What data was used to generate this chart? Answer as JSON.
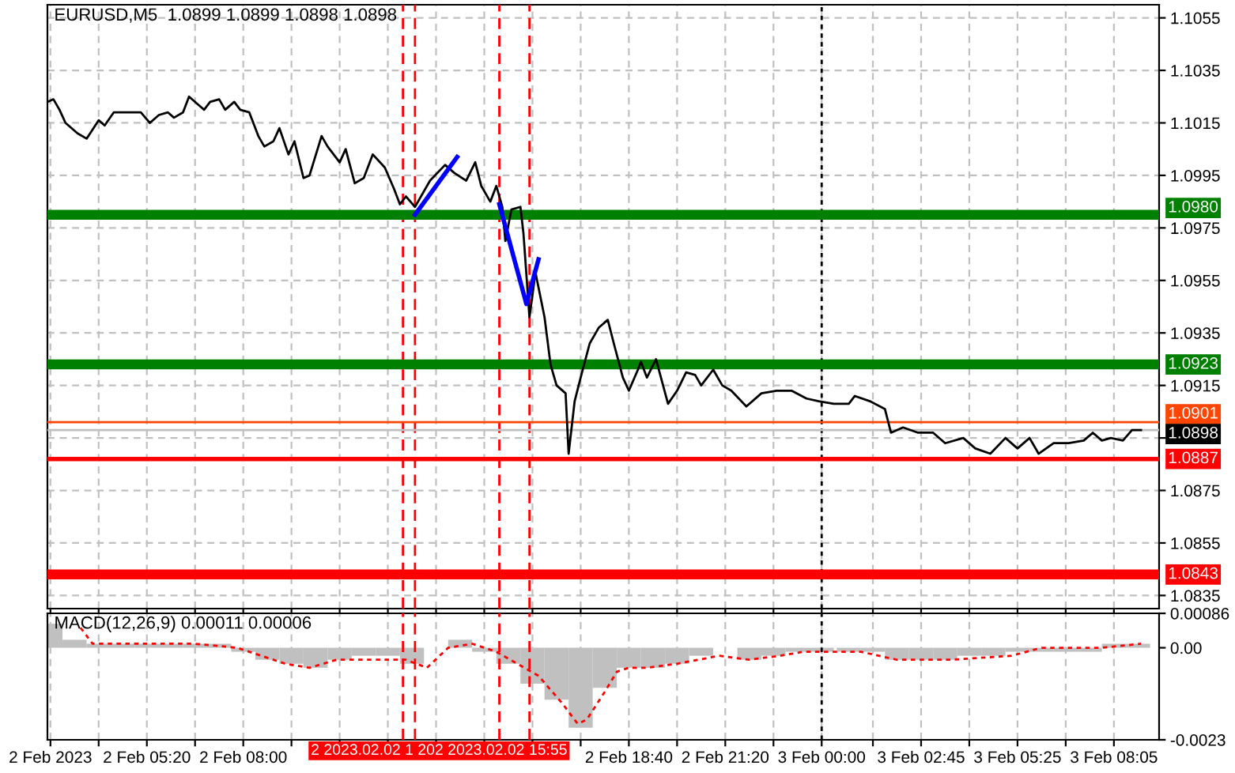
{
  "chart_data": [
    {
      "type": "line",
      "title": "EURUSD,M5  1.0899 1.0899 1.0898 1.0898",
      "xlim": [
        "2023-02-02T02:35",
        "2023-02-03T09:20"
      ],
      "ylim": [
        1.083,
        1.106
      ],
      "xticks": [
        {
          "value": "2023-02-02T02:40",
          "label": null
        },
        {
          "value": "2023-02-02T04:00",
          "label": null
        },
        {
          "value": "2023-02-02T05:20",
          "label": null
        },
        {
          "value": "2023-02-02T06:40",
          "label": null
        },
        {
          "value": "2023-02-02T08:00",
          "label": null
        },
        {
          "value": "2023-02-02T09:20",
          "label": null
        },
        {
          "value": "2023-02-02T10:40",
          "label": null
        },
        {
          "value": "2023-02-02T12:00",
          "label": null
        },
        {
          "value": "2023-02-02T13:20",
          "label": null
        },
        {
          "value": "2023-02-02T14:40",
          "label": null
        },
        {
          "value": "2023-02-02T16:00",
          "label": null
        },
        {
          "value": "2023-02-02T17:20",
          "label": null
        },
        {
          "value": "2023-02-02T18:40",
          "label": null
        },
        {
          "value": "2023-02-02T20:00",
          "label": null
        },
        {
          "value": "2023-02-02T21:20",
          "label": null
        },
        {
          "value": "2023-02-02T22:40",
          "label": null
        },
        {
          "value": "2023-02-03T00:00",
          "label": null
        },
        {
          "value": "2023-02-03T01:25",
          "label": null
        },
        {
          "value": "2023-02-03T02:45",
          "label": null
        },
        {
          "value": "2023-02-03T04:05",
          "label": null
        },
        {
          "value": "2023-02-03T05:25",
          "label": null
        },
        {
          "value": "2023-02-03T06:45",
          "label": null
        },
        {
          "value": "2023-02-03T08:05",
          "label": null
        }
      ],
      "yticks": [
        1.1055,
        1.1035,
        1.1015,
        1.0995,
        1.0975,
        1.0955,
        1.0935,
        1.0915,
        {
          "value": 1.0895,
          "label": null
        },
        1.0875,
        1.0855,
        1.0835
      ],
      "tick_labels": "y",
      "grid": true,
      "marker": "none",
      "series": [
        {
          "color": "#000000",
          "x": [
            "2023-02-02T02:35",
            "2023-02-02T02:45",
            "2023-02-02T02:55",
            "2023-02-02T03:05",
            "2023-02-02T03:25",
            "2023-02-02T03:40",
            "2023-02-02T04:00",
            "2023-02-02T04:10",
            "2023-02-02T04:25",
            "2023-02-02T04:50",
            "2023-02-02T05:10",
            "2023-02-02T05:25",
            "2023-02-02T05:40",
            "2023-02-02T05:55",
            "2023-02-02T06:05",
            "2023-02-02T06:20",
            "2023-02-02T06:30",
            "2023-02-02T06:45",
            "2023-02-02T06:55",
            "2023-02-02T07:05",
            "2023-02-02T07:20",
            "2023-02-02T07:30",
            "2023-02-02T07:45",
            "2023-02-02T07:55",
            "2023-02-02T08:10",
            "2023-02-02T08:25",
            "2023-02-02T08:35",
            "2023-02-02T08:50",
            "2023-02-02T09:00",
            "2023-02-02T09:15",
            "2023-02-02T09:25",
            "2023-02-02T09:40",
            "2023-02-02T09:50",
            "2023-02-02T10:10",
            "2023-02-02T10:20",
            "2023-02-02T10:40",
            "2023-02-02T10:50",
            "2023-02-02T11:05",
            "2023-02-02T11:20",
            "2023-02-02T11:35",
            "2023-02-02T11:55",
            "2023-02-02T12:10",
            "2023-02-02T12:20",
            "2023-02-02T12:30",
            "2023-02-02T12:45",
            "2023-02-02T13:10",
            "2023-02-02T13:35",
            "2023-02-02T13:50",
            "2023-02-02T14:10",
            "2023-02-02T14:25",
            "2023-02-02T14:35",
            "2023-02-02T14:50",
            "2023-02-02T15:00",
            "2023-02-02T15:10",
            "2023-02-02T15:15",
            "2023-02-02T15:25",
            "2023-02-02T15:40",
            "2023-02-02T15:45",
            "2023-02-02T15:55",
            "2023-02-02T16:05",
            "2023-02-02T16:20",
            "2023-02-02T16:30",
            "2023-02-02T16:40",
            "2023-02-02T16:55",
            "2023-02-02T17:00",
            "2023-02-02T17:10",
            "2023-02-02T17:20",
            "2023-02-02T17:35",
            "2023-02-02T17:50",
            "2023-02-02T18:05",
            "2023-02-02T18:15",
            "2023-02-02T18:30",
            "2023-02-02T18:40",
            "2023-02-02T18:55",
            "2023-02-02T19:00",
            "2023-02-02T19:10",
            "2023-02-02T19:25",
            "2023-02-02T19:45",
            "2023-02-02T20:00",
            "2023-02-02T20:15",
            "2023-02-02T20:30",
            "2023-02-02T20:40",
            "2023-02-02T21:00",
            "2023-02-02T21:15",
            "2023-02-02T21:30",
            "2023-02-02T21:55",
            "2023-02-02T22:20",
            "2023-02-02T22:45",
            "2023-02-02T23:10",
            "2023-02-02T23:35",
            "2023-02-02T23:55",
            "2023-02-03T00:20",
            "2023-02-03T00:45",
            "2023-02-03T00:55",
            "2023-02-03T01:20",
            "2023-02-03T01:45",
            "2023-02-03T01:55",
            "2023-02-03T02:15",
            "2023-02-03T02:40",
            "2023-02-03T03:05",
            "2023-02-03T03:25",
            "2023-02-03T03:55",
            "2023-02-03T04:15",
            "2023-02-03T04:40",
            "2023-02-03T05:05",
            "2023-02-03T05:25",
            "2023-02-03T05:45",
            "2023-02-03T06:00",
            "2023-02-03T06:25",
            "2023-02-03T06:50",
            "2023-02-03T07:15",
            "2023-02-03T07:30",
            "2023-02-03T07:45",
            "2023-02-03T08:00",
            "2023-02-03T08:20",
            "2023-02-03T08:35",
            "2023-02-03T08:50"
          ],
          "values": [
            1.1023,
            1.1024,
            1.102,
            1.1015,
            1.1011,
            1.1009,
            1.1016,
            1.1014,
            1.1019,
            1.1019,
            1.1019,
            1.1015,
            1.1018,
            1.1019,
            1.1017,
            1.1019,
            1.1025,
            1.1022,
            1.102,
            1.1023,
            1.1024,
            1.102,
            1.1023,
            1.102,
            1.1019,
            1.101,
            1.1006,
            1.1008,
            1.1013,
            1.1003,
            1.1008,
            1.0994,
            1.0995,
            1.101,
            1.1006,
            1.1,
            1.1005,
            1.0992,
            1.0994,
            1.1003,
            1.0998,
            1.099,
            1.0984,
            1.0987,
            1.0983,
            1.0993,
            1.0999,
            1.0996,
            1.0993,
            1.1,
            1.0991,
            1.0985,
            1.0991,
            1.0983,
            1.097,
            1.0982,
            1.0983,
            1.0973,
            1.0941,
            1.0958,
            1.0941,
            1.0923,
            1.0915,
            1.0912,
            1.0889,
            1.0909,
            1.0918,
            1.0931,
            1.0937,
            1.094,
            1.0931,
            1.0918,
            1.0913,
            1.0921,
            1.0924,
            1.0918,
            1.0925,
            1.0908,
            1.0913,
            1.092,
            1.0919,
            1.0915,
            1.0921,
            1.0915,
            1.0913,
            1.0907,
            1.0912,
            1.0913,
            1.0913,
            1.091,
            1.0909,
            1.0908,
            1.0908,
            1.0911,
            1.0909,
            1.0906,
            1.0897,
            1.0899,
            1.0897,
            1.0897,
            1.0893,
            1.0895,
            1.0891,
            1.0889,
            1.0895,
            1.0891,
            1.0895,
            1.0889,
            1.0893,
            1.0893,
            1.0894,
            1.0897,
            1.0894,
            1.0895,
            1.0894,
            1.0898,
            1.0898
          ]
        },
        {
          "color": "#0000ff",
          "x": [
            "2023-02-02T12:45",
            "2023-02-02T13:55"
          ],
          "values": [
            1.098,
            1.1002
          ]
        },
        {
          "color": "#0000ff",
          "x": [
            "2023-02-02T15:05",
            "2023-02-02T15:50",
            "2023-02-02T16:10"
          ],
          "values": [
            1.0984,
            1.0946,
            1.0963
          ]
        }
      ],
      "ref_lines": [
        {
          "axis": "x",
          "value": "2023-02-02T12:25",
          "color": "#ff0000",
          "line_style": "dashed"
        },
        {
          "axis": "x",
          "value": "2023-02-02T12:45",
          "color": "#ff0000",
          "line_style": "dashed"
        },
        {
          "axis": "x",
          "value": "2023-02-02T15:05",
          "color": "#ff0000",
          "line_style": "dashed"
        },
        {
          "axis": "x",
          "value": "2023-02-02T15:55",
          "color": "#ff0000",
          "line_style": "dashed"
        },
        {
          "axis": "x",
          "value": "2023-02-03T00:00",
          "color": "#000000",
          "line_style": "dotted"
        },
        {
          "axis": "y",
          "value": 1.098,
          "label": "1.0980",
          "color": "#008000",
          "line_style": "solid"
        },
        {
          "axis": "y",
          "value": 1.0923,
          "label": "1.0923",
          "color": "#008000",
          "line_style": "solid"
        },
        {
          "axis": "y",
          "value": 1.0901,
          "label": "1.0901",
          "color": "#ff4500",
          "line_style": "solid"
        },
        {
          "axis": "y",
          "value": 1.0898,
          "label": "1.0898",
          "color": "#c0c0c0",
          "line_style": "solid"
        },
        {
          "axis": "y",
          "value": 1.0887,
          "label": "1.0887",
          "color": "#ff0000",
          "line_style": "solid"
        },
        {
          "axis": "y",
          "value": 1.0843,
          "label": "1.0843",
          "color": "#ff0000",
          "line_style": "solid"
        }
      ]
    },
    {
      "type": "bar",
      "title": "MACD(12,26,9) 0.00011 0.00006",
      "xlim": [
        "2023-02-02T02:35",
        "2023-02-03T09:20"
      ],
      "ylim": [
        -0.0023,
        0.00086
      ],
      "xticks": [
        {
          "value": "2023-02-02T02:40",
          "label": "2 Feb 2023"
        },
        {
          "value": "2023-02-02T04:00",
          "label": null
        },
        {
          "value": "2023-02-02T05:20",
          "label": "2 Feb 05:20"
        },
        {
          "value": "2023-02-02T06:40",
          "label": null
        },
        {
          "value": "2023-02-02T08:00",
          "label": "2 Feb 08:00"
        },
        {
          "value": "2023-02-02T09:20",
          "label": null
        },
        {
          "value": "2023-02-02T10:40",
          "label": null
        },
        {
          "value": "2023-02-02T12:00",
          "label": null
        },
        {
          "value": "2023-02-02T13:20",
          "label": null
        },
        {
          "value": "2023-02-02T14:40",
          "label": null
        },
        {
          "value": "2023-02-02T16:00",
          "label": null
        },
        {
          "value": "2023-02-02T17:20",
          "label": null
        },
        {
          "value": "2023-02-02T18:40",
          "label": "2 Feb 18:40"
        },
        {
          "value": "2023-02-02T20:00",
          "label": null
        },
        {
          "value": "2023-02-02T21:20",
          "label": "2 Feb 21:20"
        },
        {
          "value": "2023-02-02T22:40",
          "label": null
        },
        {
          "value": "2023-02-03T00:00",
          "label": "3 Feb 00:00"
        },
        {
          "value": "2023-02-03T01:25",
          "label": null
        },
        {
          "value": "2023-02-03T02:45",
          "label": "3 Feb 02:45"
        },
        {
          "value": "2023-02-03T04:05",
          "label": null
        },
        {
          "value": "2023-02-03T05:25",
          "label": "3 Feb 05:25"
        },
        {
          "value": "2023-02-03T06:45",
          "label": null
        },
        {
          "value": "2023-02-03T08:05",
          "label": "3 Feb 08:05"
        }
      ],
      "yticks": [
        0.00086,
        {
          "value": 0,
          "label": "0.00"
        },
        -0.0023
      ],
      "grid": "x",
      "series": [
        {
          "type": "bar",
          "color": "#c0c0c0",
          "x": [
            "2023-02-02T02:40",
            "2023-02-02T03:20",
            "2023-02-02T04:00",
            "2023-02-02T04:40",
            "2023-02-02T05:20",
            "2023-02-02T06:00",
            "2023-02-02T06:40",
            "2023-02-02T07:20",
            "2023-02-02T08:00",
            "2023-02-02T08:40",
            "2023-02-02T09:20",
            "2023-02-02T10:00",
            "2023-02-02T10:40",
            "2023-02-02T11:20",
            "2023-02-02T12:00",
            "2023-02-02T12:40",
            "2023-02-02T13:20",
            "2023-02-02T14:00",
            "2023-02-02T14:40",
            "2023-02-02T15:20",
            "2023-02-02T16:00",
            "2023-02-02T16:40",
            "2023-02-02T17:20",
            "2023-02-02T18:00",
            "2023-02-02T18:40",
            "2023-02-02T19:20",
            "2023-02-02T20:00",
            "2023-02-02T20:40",
            "2023-02-02T21:20",
            "2023-02-02T22:00",
            "2023-02-02T22:40",
            "2023-02-02T23:20",
            "2023-02-03T00:00",
            "2023-02-03T00:45",
            "2023-02-03T01:25",
            "2023-02-03T02:05",
            "2023-02-03T02:45",
            "2023-02-03T03:25",
            "2023-02-03T04:05",
            "2023-02-03T04:45",
            "2023-02-03T05:25",
            "2023-02-03T06:05",
            "2023-02-03T06:45",
            "2023-02-03T07:25",
            "2023-02-03T08:05",
            "2023-02-03T08:45"
          ],
          "values": [
            0.0006,
            0.0002,
            0.0001,
            0.0001,
            0.0001,
            0.0001,
            0.0001,
            0.0001,
            -0.0001,
            -0.0003,
            -0.0004,
            -0.0005,
            -0.0003,
            -0.0002,
            -0.0002,
            -0.0004,
            0.0,
            0.0002,
            -0.0001,
            -0.0004,
            -0.0009,
            -0.0013,
            -0.002,
            -0.001,
            -0.0005,
            -0.0005,
            -0.0004,
            -0.0002,
            0.0,
            -0.0003,
            -0.0002,
            -0.0001,
            -0.0001,
            -0.0001,
            -0.0001,
            -0.0003,
            -0.0003,
            -0.0003,
            -0.0002,
            -0.0002,
            -0.0001,
            -0.0001,
            -0.0001,
            -0.0001,
            0.0001,
            0.0001
          ]
        },
        {
          "type": "line",
          "color": "#ff0000",
          "line_style": "dashed",
          "x": [
            "2023-02-02T03:30",
            "2023-02-02T03:50",
            "2023-02-02T05:00",
            "2023-02-02T06:40",
            "2023-02-02T07:50",
            "2023-02-02T08:30",
            "2023-02-02T09:10",
            "2023-02-02T09:50",
            "2023-02-02T10:35",
            "2023-02-02T11:25",
            "2023-02-02T12:30",
            "2023-02-02T13:05",
            "2023-02-02T13:40",
            "2023-02-02T14:20",
            "2023-02-02T15:00",
            "2023-02-02T15:35",
            "2023-02-02T16:10",
            "2023-02-02T16:50",
            "2023-02-02T17:15",
            "2023-02-02T17:30",
            "2023-02-02T18:00",
            "2023-02-02T18:20",
            "2023-02-02T18:40",
            "2023-02-02T19:10",
            "2023-02-02T20:00",
            "2023-02-02T21:10",
            "2023-02-02T22:00",
            "2023-02-02T22:50",
            "2023-02-02T23:30",
            "2023-02-03T01:05",
            "2023-02-03T02:05",
            "2023-02-03T03:35",
            "2023-02-03T05:15",
            "2023-02-03T06:05",
            "2023-02-03T07:45",
            "2023-02-03T08:50"
          ],
          "values": [
            0.0005,
            0.0001,
            0.0001,
            0.0001,
            0.0,
            -0.0002,
            -0.0004,
            -0.0005,
            -0.0003,
            -0.0003,
            -0.0003,
            -0.0005,
            0.0,
            0.0001,
            -0.0001,
            -0.0004,
            -0.0007,
            -0.0014,
            -0.0019,
            -0.0018,
            -0.0011,
            -0.0006,
            -0.0005,
            -0.0005,
            -0.0004,
            -0.0002,
            -0.0003,
            -0.0002,
            -0.0001,
            -0.0001,
            -0.0003,
            -0.0003,
            -0.0002,
            0.0,
            0.0,
            0.0001
          ]
        }
      ],
      "ref_lines": [
        {
          "axis": "x",
          "value": "2023-02-02T12:25",
          "color": "#ff0000",
          "line_style": "dashed"
        },
        {
          "axis": "x",
          "value": "2023-02-02T12:45",
          "color": "#ff0000",
          "line_style": "dashed"
        },
        {
          "axis": "x",
          "value": "2023-02-02T15:05",
          "color": "#ff0000",
          "line_style": "dashed"
        },
        {
          "axis": "x",
          "value": "2023-02-02T15:55",
          "color": "#ff0000",
          "line_style": "dashed"
        },
        {
          "axis": "x",
          "value": "2023-02-03T00:00",
          "color": "#000000",
          "line_style": "dotted"
        }
      ],
      "annotations": [
        "2 2023.02.02 1 202 2023.02.02 15:55"
      ]
    }
  ]
}
